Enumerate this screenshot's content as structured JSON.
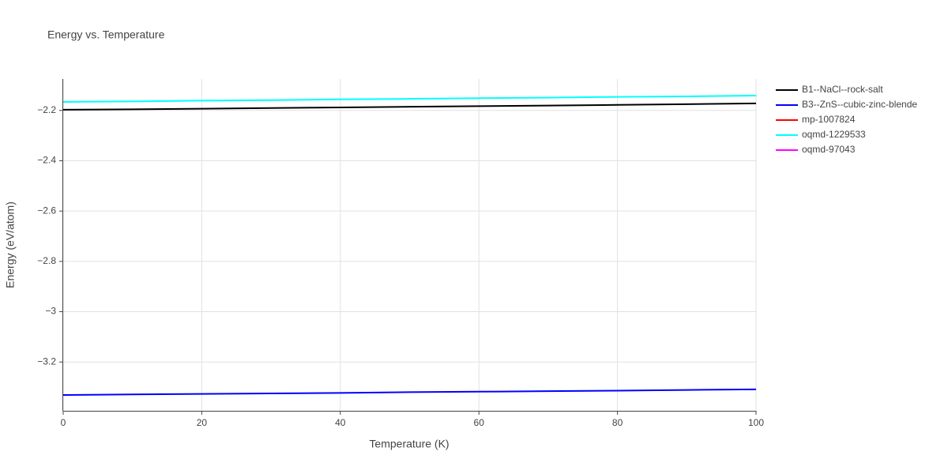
{
  "chart_data": {
    "type": "line",
    "title": "Energy vs. Temperature",
    "x_label": "Temperature (K)",
    "y_label": "Energy (eV/atom)",
    "x": [
      0,
      10,
      20,
      30,
      40,
      50,
      60,
      70,
      80,
      90,
      100
    ],
    "series": [
      {
        "name": "B1--NaCl--rock-salt",
        "color": "#000000",
        "values": [
          -2.197,
          -2.1955,
          -2.193,
          -2.1905,
          -2.188,
          -2.1855,
          -2.183,
          -2.1805,
          -2.178,
          -2.175,
          -2.172
        ]
      },
      {
        "name": "B3--ZnS--cubic-zinc-blende",
        "color": "#0000ff",
        "values": [
          -3.331,
          -3.329,
          -3.327,
          -3.325,
          -3.323,
          -3.32,
          -3.318,
          -3.316,
          -3.314,
          -3.311,
          -3.309
        ]
      },
      {
        "name": "mp-1007824",
        "color": "#ff0000",
        "values": [
          null,
          null,
          null,
          null,
          null,
          null,
          null,
          null,
          null,
          null,
          null
        ]
      },
      {
        "name": "oqmd-1229533",
        "color": "#00ffff",
        "values": [
          -2.166,
          -2.164,
          -2.161,
          -2.159,
          -2.156,
          -2.154,
          -2.151,
          -2.149,
          -2.146,
          -2.144,
          -2.141
        ]
      },
      {
        "name": "oqmd-97043",
        "color": "#ff00ff",
        "values": [
          null,
          null,
          null,
          null,
          null,
          null,
          null,
          null,
          null,
          null,
          null
        ]
      }
    ],
    "xlim": [
      0,
      100
    ],
    "xticks": [
      0,
      20,
      40,
      60,
      80,
      100
    ],
    "ylim": [
      -3.394,
      -2.075
    ],
    "yticks": [
      {
        "value": -3.2,
        "label": "−3.2"
      },
      {
        "value": -3,
        "label": "−3"
      },
      {
        "value": -2.8,
        "label": "−2.8"
      },
      {
        "value": -2.6,
        "label": "−2.6"
      },
      {
        "value": -2.4,
        "label": "−2.4"
      },
      {
        "value": -2.2,
        "label": "−2.2"
      }
    ],
    "grid": true,
    "legend": "right"
  }
}
